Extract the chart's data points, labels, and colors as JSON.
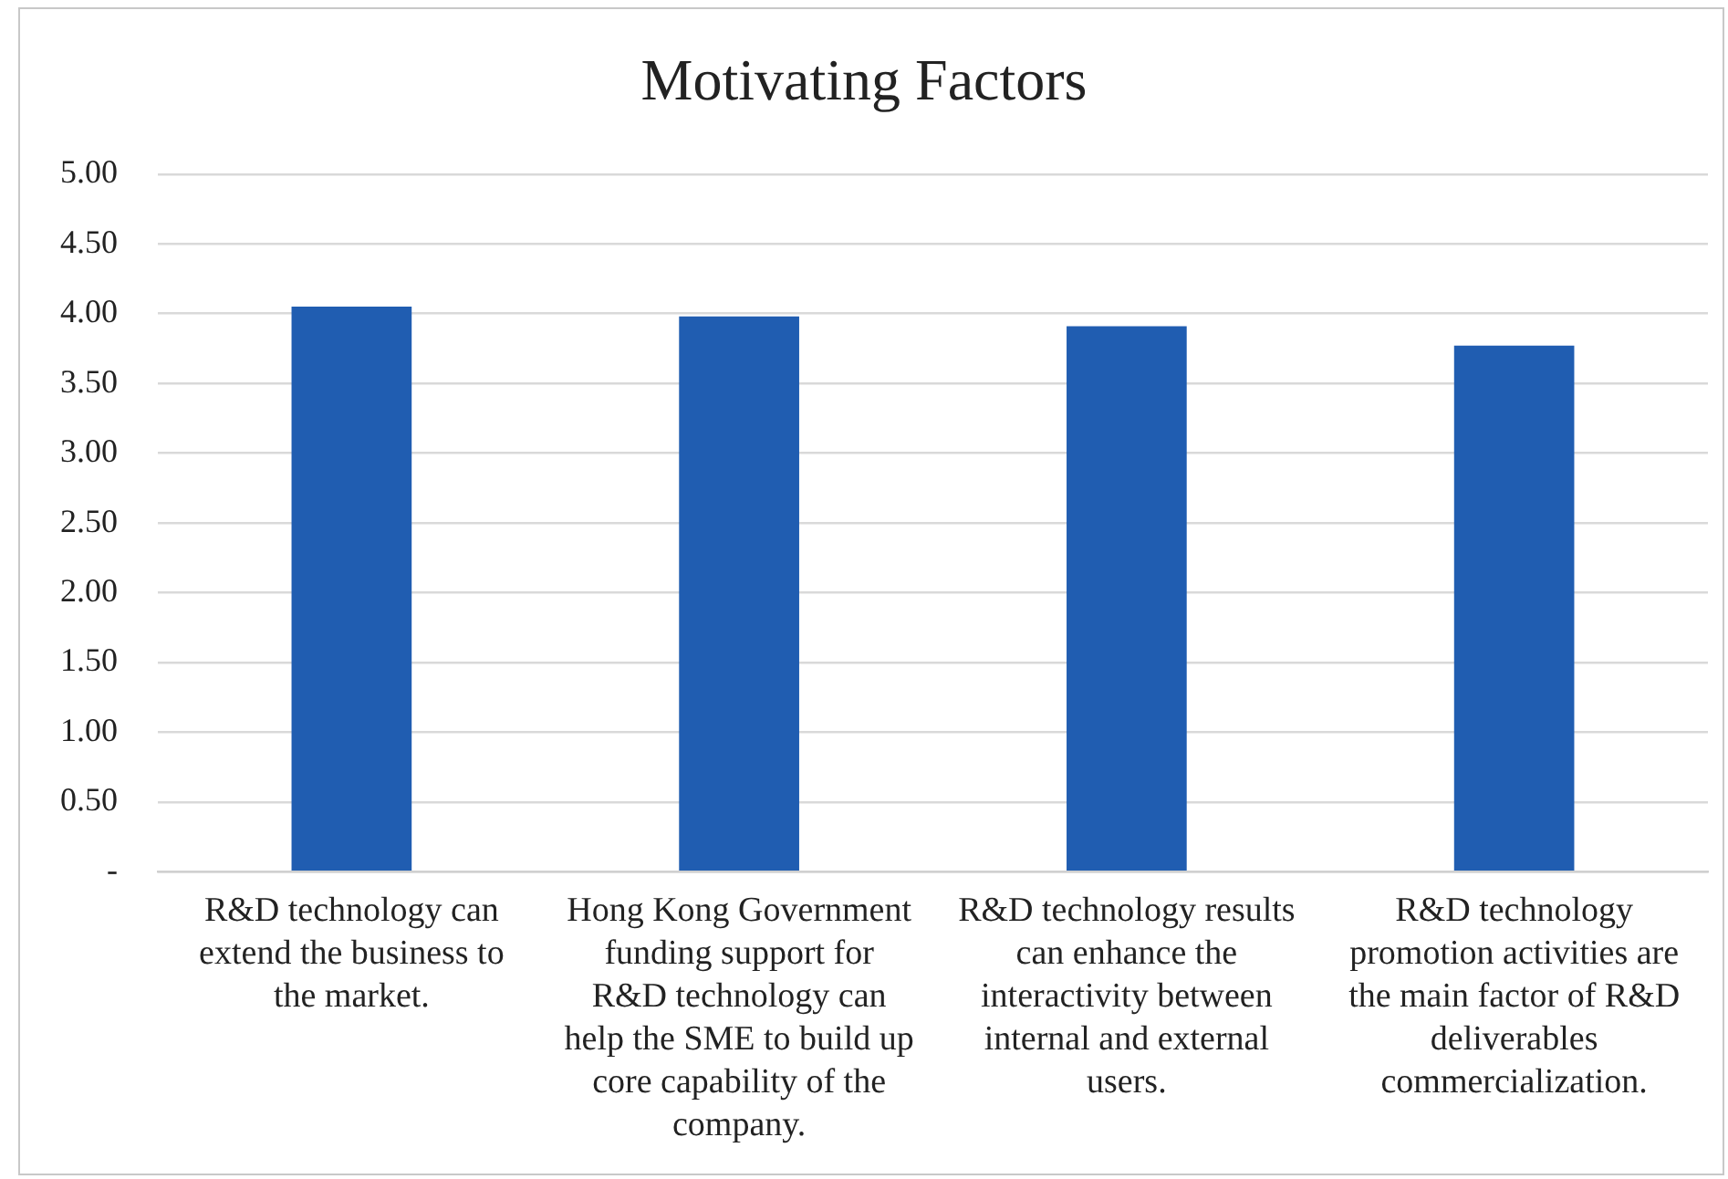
{
  "chart_data": {
    "type": "bar",
    "title": "Motivating Factors",
    "categories": [
      "R&D technology can extend the business to the market.",
      "Hong Kong Government funding support for R&D technology can help the SME to build up core capability of the company.",
      "R&D technology results can enhance the interactivity between internal and external users.",
      "R&D technology promotion activities are the main factor of R&D deliverables commercialization."
    ],
    "values": [
      4.05,
      3.98,
      3.91,
      3.77
    ],
    "color": "#205db1",
    "ylim": [
      0,
      5
    ],
    "yticks": [
      {
        "value": 0,
        "label": "-"
      },
      {
        "value": 0.5,
        "label": "0.50"
      },
      {
        "value": 1,
        "label": "1.00"
      },
      {
        "value": 1.5,
        "label": "1.50"
      },
      {
        "value": 2,
        "label": "2.00"
      },
      {
        "value": 2.5,
        "label": "2.50"
      },
      {
        "value": 3,
        "label": "3.00"
      },
      {
        "value": 3.5,
        "label": "3.50"
      },
      {
        "value": 4,
        "label": "4.00"
      },
      {
        "value": 4.5,
        "label": "4.50"
      },
      {
        "value": 5,
        "label": "5.00"
      }
    ],
    "grid": "y",
    "legend": false
  }
}
